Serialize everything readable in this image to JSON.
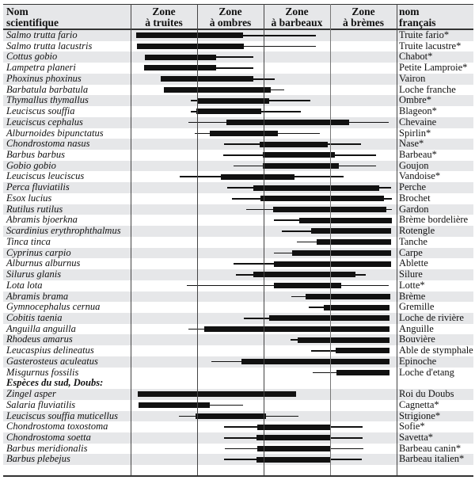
{
  "header": {
    "scientific": [
      "Nom",
      "scientifique"
    ],
    "french": [
      "nom",
      "français"
    ],
    "zones": [
      [
        "Zone",
        "à truites"
      ],
      [
        "Zone",
        "à ombres"
      ],
      [
        "Zone",
        "à barbeaux"
      ],
      [
        "Zone",
        "à brèmes"
      ]
    ]
  },
  "chart_data": {
    "type": "bar",
    "orientation": "horizontal-range",
    "x_unit": "zone (0 = upstream edge of Zone à truites, 4 = downstream edge of Zone à brèmes)",
    "xlim": [
      0,
      4
    ],
    "categories_x": [
      "Zone à truites",
      "Zone à ombres",
      "Zone à barbeaux",
      "Zone à brèmes"
    ],
    "section_label": "Espèces du sud, Doubs:",
    "section_before_index": 32,
    "colors": {
      "bar": "#111111",
      "stripe": "#e6e7e9"
    },
    "rows": [
      {
        "sci": "Salmo trutta fario",
        "fr": "Truite fario*",
        "thin": [
          0.08,
          2.79
        ],
        "thick": [
          0.08,
          1.69
        ]
      },
      {
        "sci": "Salmo trutta lacustris",
        "fr": "Truite lacustre*",
        "thin": [
          0.09,
          2.79
        ],
        "thick": [
          0.09,
          1.7
        ]
      },
      {
        "sci": "Cottus gobio",
        "fr": "Chabot*",
        "thin": [
          0.21,
          1.84
        ],
        "thick": [
          0.21,
          1.29
        ]
      },
      {
        "sci": "Lampetra planeri",
        "fr": "Petite Lamproie*",
        "thin": [
          0.2,
          1.84
        ],
        "thick": [
          0.2,
          1.29
        ]
      },
      {
        "sci": "Phoxinus phoxinus",
        "fr": "Vairon",
        "thin": [
          0.45,
          2.17
        ],
        "thick": [
          0.45,
          1.84
        ]
      },
      {
        "sci": "Barbatula barbatula",
        "fr": "Loche franche",
        "thin": [
          0.5,
          2.31
        ],
        "thick": [
          0.5,
          2.11
        ]
      },
      {
        "sci": "Thymallus thymallus",
        "fr": "Ombre*",
        "thin": [
          0.91,
          2.7
        ],
        "thick": [
          1.01,
          2.08
        ]
      },
      {
        "sci": "Leuciscus souffia",
        "fr": "Blageon*",
        "thin": [
          0.9,
          2.56
        ],
        "thick": [
          0.99,
          1.97
        ]
      },
      {
        "sci": "Leuciscus cephalus",
        "fr": "Chevaine",
        "thin": [
          0.87,
          3.88
        ],
        "thick": [
          1.44,
          3.29
        ]
      },
      {
        "sci": "Alburnoides bipunctatus",
        "fr": "Spirlin*",
        "thin": [
          0.96,
          2.85
        ],
        "thick": [
          1.19,
          2.22
        ]
      },
      {
        "sci": "Chondrostoma nasus",
        "fr": "Nase*",
        "thin": [
          1.4,
          3.47
        ],
        "thick": [
          1.94,
          2.96
        ]
      },
      {
        "sci": "Barbus barbus",
        "fr": "Barbeau*",
        "thin": [
          1.39,
          3.69
        ],
        "thick": [
          1.99,
          3.07
        ]
      },
      {
        "sci": "Gobio gobio",
        "fr": "Goujon",
        "thin": [
          1.55,
          3.69
        ],
        "thick": [
          1.99,
          3.13
        ]
      },
      {
        "sci": "Leuciscus leuciscus",
        "fr": "Vandoise*",
        "thin": [
          0.74,
          3.2
        ],
        "thick": [
          1.36,
          2.46
        ]
      },
      {
        "sci": "Perca fluviatilis",
        "fr": "Perche",
        "thin": [
          1.45,
          3.92
        ],
        "thick": [
          1.85,
          3.74
        ]
      },
      {
        "sci": "Esox lucius",
        "fr": "Brochet",
        "thin": [
          1.52,
          3.93
        ],
        "thick": [
          1.95,
          3.81
        ]
      },
      {
        "sci": "Rutilus rutilus",
        "fr": "Gardon",
        "thin": [
          1.74,
          3.93
        ],
        "thick": [
          2.14,
          3.84
        ]
      },
      {
        "sci": "Abramis bjoerkna",
        "fr": "Brème bordelière",
        "thin": [
          2.16,
          3.93
        ],
        "thick": [
          2.53,
          3.93
        ]
      },
      {
        "sci": "Scardinius erythrophthalmus",
        "fr": "Rotengle",
        "thin": [
          2.27,
          3.92
        ],
        "thick": [
          2.72,
          3.92
        ]
      },
      {
        "sci": "Tinca tinca",
        "fr": "Tanche",
        "thin": [
          2.5,
          3.92
        ],
        "thick": [
          2.8,
          3.92
        ]
      },
      {
        "sci": "Cyprinus carpio",
        "fr": "Carpe",
        "thin": [
          2.15,
          3.92
        ],
        "thick": [
          2.43,
          3.92
        ]
      },
      {
        "sci": "Alburnus alburnus",
        "fr": "Ablette",
        "thin": [
          1.55,
          3.92
        ],
        "thick": [
          2.15,
          3.92
        ]
      },
      {
        "sci": "Silurus glanis",
        "fr": "Silure",
        "thin": [
          1.58,
          3.53
        ],
        "thick": [
          1.85,
          3.38
        ]
      },
      {
        "sci": "Lota lota",
        "fr": "Lotte*",
        "thin": [
          0.84,
          3.88
        ],
        "thick": [
          2.16,
          3.17
        ]
      },
      {
        "sci": "Abramis brama",
        "fr": "Brème",
        "thin": [
          2.42,
          3.9
        ],
        "thick": [
          2.63,
          3.9
        ]
      },
      {
        "sci": "Gymnocephalus cernua",
        "fr": "Gremille",
        "thin": [
          2.68,
          3.89
        ],
        "thick": [
          2.91,
          3.89
        ]
      },
      {
        "sci": "Cobitis taenia",
        "fr": "Loche de rivière",
        "thin": [
          1.7,
          3.89
        ],
        "thick": [
          2.08,
          3.89
        ]
      },
      {
        "sci": "Anguilla anguilla",
        "fr": "Anguille",
        "thin": [
          0.87,
          3.89
        ],
        "thick": [
          1.11,
          3.89
        ]
      },
      {
        "sci": "Rhodeus amarus",
        "fr": "Bouvière",
        "thin": [
          2.4,
          3.89
        ],
        "thick": [
          2.51,
          3.89
        ]
      },
      {
        "sci": "Leucaspius delineatus",
        "fr": "Able de stymphale",
        "thin": [
          2.72,
          3.89
        ],
        "thick": [
          3.08,
          3.89
        ]
      },
      {
        "sci": "Gasterosteus aculeatus",
        "fr": "Epinoche",
        "thin": [
          1.22,
          3.89
        ],
        "thick": [
          1.67,
          3.89
        ]
      },
      {
        "sci": "Misgurnus fossilis",
        "fr": "Loche d'etang",
        "thin": [
          2.74,
          3.89
        ],
        "thick": [
          3.1,
          3.89
        ]
      },
      {
        "sci": "Zingel asper",
        "fr": "Roi du Doubs",
        "thin": null,
        "thick": [
          0.11,
          2.49
        ]
      },
      {
        "sci": "Salaria fluviatilis",
        "fr": "Cagnetta*",
        "thin": [
          0.12,
          1.69
        ],
        "thick": [
          0.12,
          1.19
        ]
      },
      {
        "sci": "Leuciscus souffia muticellus",
        "fr": "Strigione*",
        "thin": [
          0.73,
          2.52
        ],
        "thick": [
          0.98,
          2.03
        ]
      },
      {
        "sci": "Chondrostoma toxostoma",
        "fr": "Sofie*",
        "thin": [
          1.41,
          3.49
        ],
        "thick": [
          1.9,
          3.0
        ]
      },
      {
        "sci": "Chondrostoma soetta",
        "fr": "Savetta*",
        "thin": [
          1.41,
          3.49
        ],
        "thick": [
          1.89,
          3.0
        ]
      },
      {
        "sci": "Barbus meridionalis",
        "fr": "Barbeau canin*",
        "thin": [
          1.42,
          3.5
        ],
        "thick": [
          1.9,
          3.01
        ]
      },
      {
        "sci": "Barbus plebejus",
        "fr": "Barbeau italien*",
        "thin": [
          1.4,
          3.48
        ],
        "thick": [
          1.89,
          3.0
        ]
      }
    ]
  }
}
